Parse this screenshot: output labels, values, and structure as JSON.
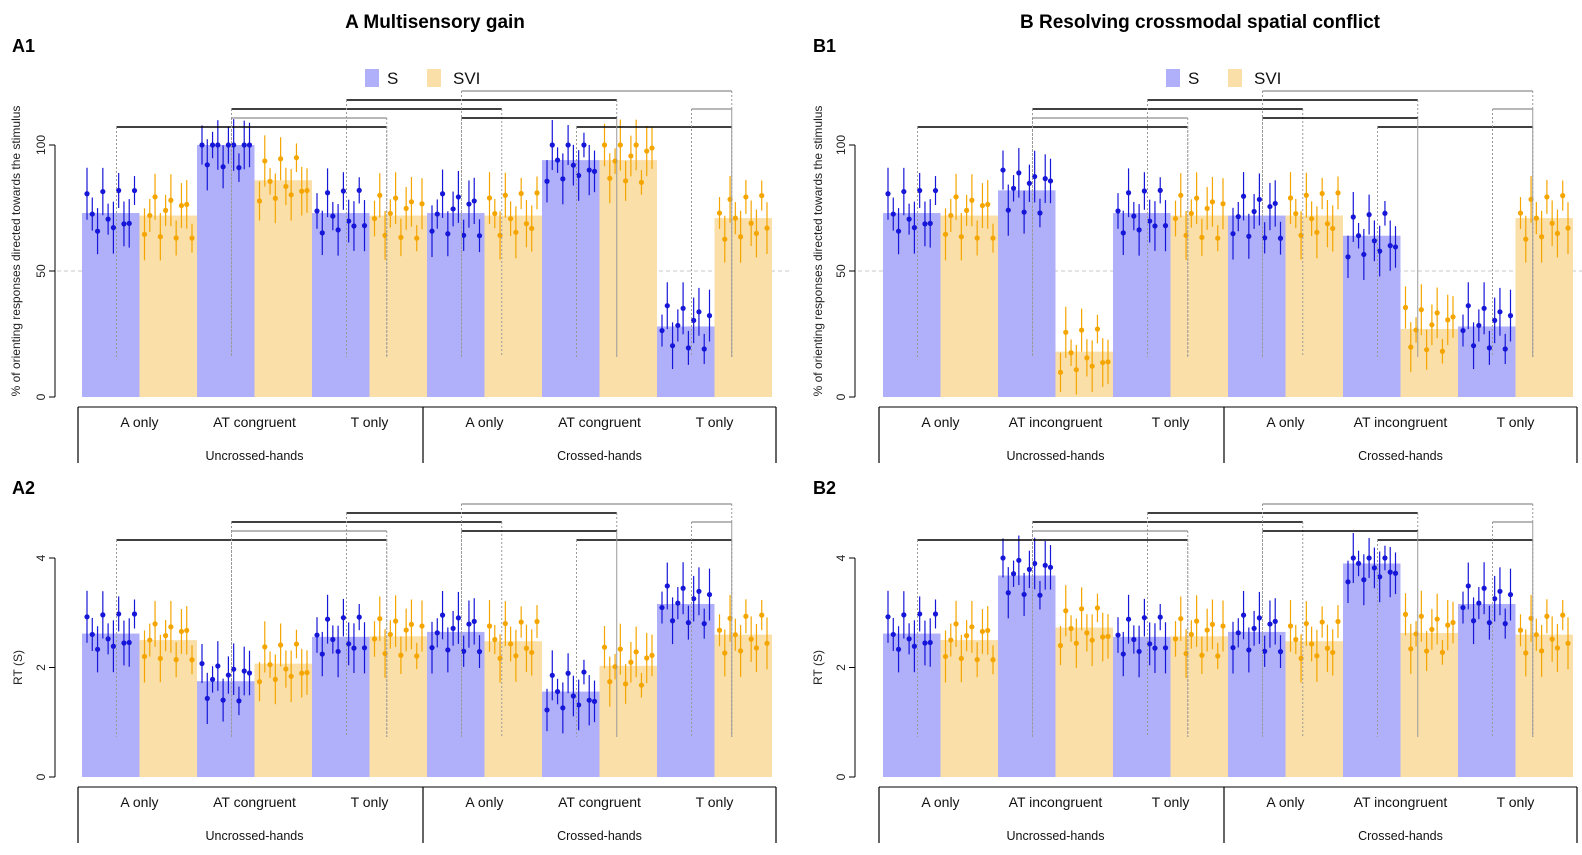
{
  "colors": {
    "S": "#b0b0fa",
    "SVI": "#fadfa8",
    "S_point": "#1616d8",
    "SVI_point": "#f5a500",
    "axis": "#000000",
    "bracket": "#000000",
    "bracket_grey": "#a0a0a0",
    "refline": "#c8c8c8"
  },
  "headings": {
    "A": "A Multisensory gain",
    "B": "B Resolving crossmodal spatial conflict"
  },
  "legend": {
    "S": "S",
    "SVI": "SVI"
  },
  "axis_titles": {
    "pct": "% of orienting responses directed towards the stimulus",
    "rt": "RT (S)"
  },
  "group_labels": [
    "Uncrossed-hands",
    "Crossed-hands"
  ],
  "chart_data": [
    {
      "id": "A1",
      "panel_label": "A1",
      "type": "bar",
      "categories": [
        "A only",
        "AT congruent",
        "T only",
        "A only",
        "AT congruent",
        "T only"
      ],
      "groups": [
        "Uncrossed-hands",
        "Crossed-hands"
      ],
      "ylabel": "% of orienting responses directed towards the stimulus",
      "ylim": [
        0,
        100
      ],
      "yticks": [
        "0",
        "50",
        "100"
      ],
      "reference_line": 50,
      "legend": "top-center",
      "series": [
        {
          "name": "S",
          "values": [
            73,
            100,
            73,
            73,
            94,
            28
          ]
        },
        {
          "name": "SVI",
          "values": [
            72,
            86,
            72,
            72,
            94,
            71
          ]
        }
      ]
    },
    {
      "id": "A2",
      "panel_label": "A2",
      "type": "bar",
      "categories": [
        "A only",
        "AT congruent",
        "T only",
        "A only",
        "AT congruent",
        "T only"
      ],
      "groups": [
        "Uncrossed-hands",
        "Crossed-hands"
      ],
      "ylabel": "RT (S)",
      "ylim": [
        0,
        4
      ],
      "yticks": [
        "0",
        "2",
        "4"
      ],
      "series": [
        {
          "name": "S",
          "values": [
            2.62,
            1.75,
            2.56,
            2.65,
            1.56,
            3.16
          ]
        },
        {
          "name": "SVI",
          "values": [
            2.5,
            2.07,
            2.57,
            2.48,
            2.03,
            2.6
          ]
        }
      ]
    },
    {
      "id": "B1",
      "panel_label": "B1",
      "type": "bar",
      "categories": [
        "A only",
        "AT incongruent",
        "T only",
        "A only",
        "AT incongruent",
        "T only"
      ],
      "groups": [
        "Uncrossed-hands",
        "Crossed-hands"
      ],
      "ylabel": "% of orienting responses directed towards the stimulus",
      "ylim": [
        0,
        100
      ],
      "yticks": [
        "0",
        "50",
        "100"
      ],
      "reference_line": 50,
      "legend": "top-center",
      "series": [
        {
          "name": "S",
          "values": [
            73,
            82,
            73,
            72,
            64,
            28
          ]
        },
        {
          "name": "SVI",
          "values": [
            72,
            18,
            72,
            72,
            27,
            71
          ]
        }
      ]
    },
    {
      "id": "B2",
      "panel_label": "B2",
      "type": "bar",
      "categories": [
        "A only",
        "AT incongruent",
        "T only",
        "A only",
        "AT incongruent",
        "T only"
      ],
      "groups": [
        "Uncrossed-hands",
        "Crossed-hands"
      ],
      "ylabel": "RT (S)",
      "ylim": [
        0,
        4
      ],
      "yticks": [
        "0",
        "2",
        "4"
      ],
      "series": [
        {
          "name": "S",
          "values": [
            2.62,
            3.68,
            2.56,
            2.65,
            3.9,
            3.16
          ]
        },
        {
          "name": "SVI",
          "values": [
            2.5,
            2.73,
            2.57,
            2.48,
            2.63,
            2.6
          ]
        }
      ]
    }
  ]
}
